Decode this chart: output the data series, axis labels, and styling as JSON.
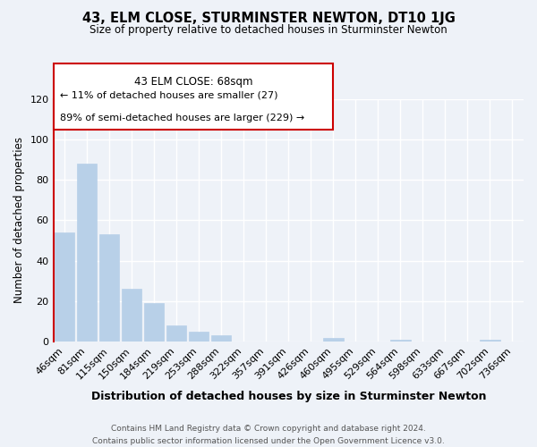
{
  "title": "43, ELM CLOSE, STURMINSTER NEWTON, DT10 1JG",
  "subtitle": "Size of property relative to detached houses in Sturminster Newton",
  "xlabel": "Distribution of detached houses by size in Sturminster Newton",
  "ylabel": "Number of detached properties",
  "bin_labels": [
    "46sqm",
    "81sqm",
    "115sqm",
    "150sqm",
    "184sqm",
    "219sqm",
    "253sqm",
    "288sqm",
    "322sqm",
    "357sqm",
    "391sqm",
    "426sqm",
    "460sqm",
    "495sqm",
    "529sqm",
    "564sqm",
    "598sqm",
    "633sqm",
    "667sqm",
    "702sqm",
    "736sqm"
  ],
  "bar_heights": [
    54,
    88,
    53,
    26,
    19,
    8,
    5,
    3,
    0,
    0,
    0,
    0,
    2,
    0,
    0,
    1,
    0,
    0,
    0,
    1,
    0
  ],
  "bar_color": "#b8d0e8",
  "vline_color": "#cc0000",
  "ylim": [
    0,
    120
  ],
  "yticks": [
    0,
    20,
    40,
    60,
    80,
    100,
    120
  ],
  "annotation_title": "43 ELM CLOSE: 68sqm",
  "annotation_line1": "← 11% of detached houses are smaller (27)",
  "annotation_line2": "89% of semi-detached houses are larger (229) →",
  "footer_line1": "Contains HM Land Registry data © Crown copyright and database right 2024.",
  "footer_line2": "Contains public sector information licensed under the Open Government Licence v3.0.",
  "background_color": "#eef2f8",
  "plot_background_color": "#eef2f8",
  "grid_color": "#ffffff"
}
